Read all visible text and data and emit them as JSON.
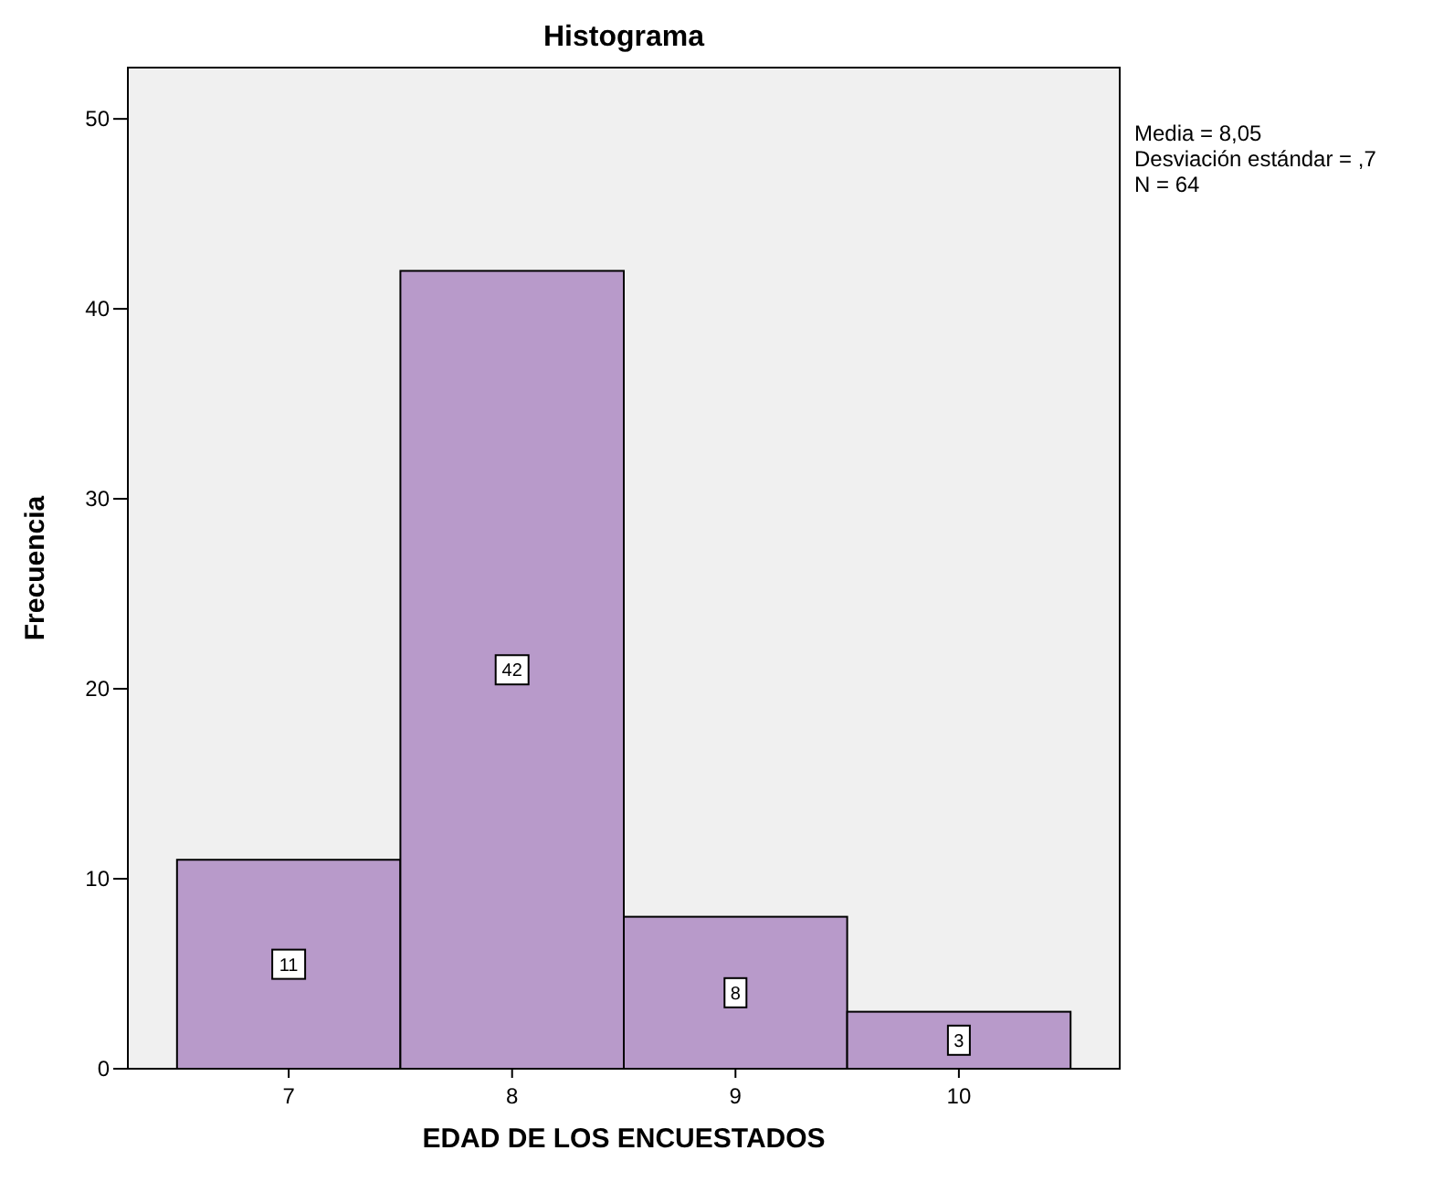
{
  "chart_data": {
    "type": "histogram",
    "title": "Histograma",
    "xlabel": "EDAD DE LOS ENCUESTADOS",
    "ylabel": "Frecuencia",
    "bins": [
      6.5,
      7.5,
      8.5,
      9.5,
      10.5
    ],
    "values": [
      11,
      42,
      8,
      3
    ],
    "color": "#b89aca",
    "xlim": [
      6.28,
      10.72
    ],
    "xticks": [
      7,
      8,
      9,
      10
    ],
    "ylim": [
      0,
      52.7
    ],
    "yticks": [
      0,
      10,
      20,
      30,
      40,
      50
    ],
    "data_labels": true,
    "grid": false,
    "annotations": [
      "Media = 8,05",
      "Desviación estándar = ,7",
      "N = 64"
    ]
  }
}
